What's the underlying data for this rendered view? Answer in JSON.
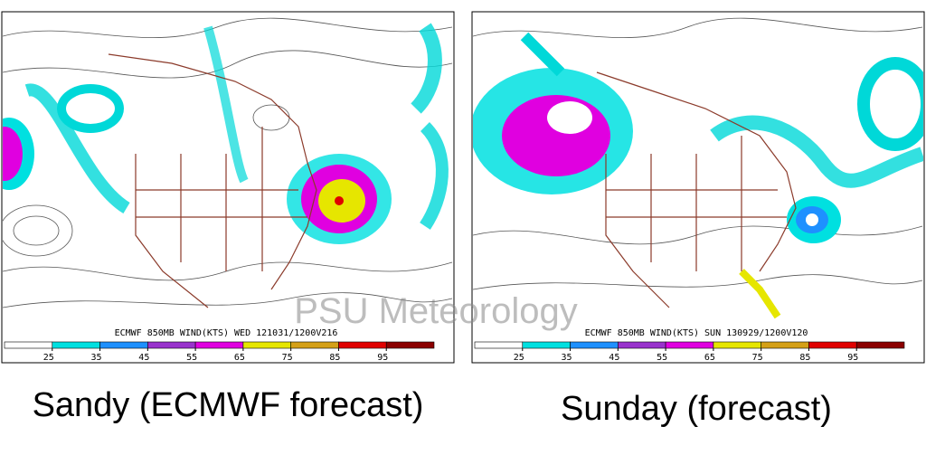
{
  "maps": [
    {
      "header": "ECMWF 850MB WIND(KTS) WED 121031/1200V216",
      "caption": "Sandy (ECMWF forecast)"
    },
    {
      "header": "ECMWF 850MB WIND(KTS) SUN 130929/1200V120",
      "caption": "Sunday (forecast)"
    }
  ],
  "colorbar": {
    "ticks": [
      25,
      35,
      45,
      55,
      65,
      75,
      85,
      95
    ],
    "colors": [
      "#ffffff",
      "#00e0e0",
      "#1e90ff",
      "#9932cc",
      "#e000e0",
      "#e6e600",
      "#d4a017",
      "#e00000",
      "#8b0000"
    ]
  },
  "watermark": "PSU Meteorology"
}
